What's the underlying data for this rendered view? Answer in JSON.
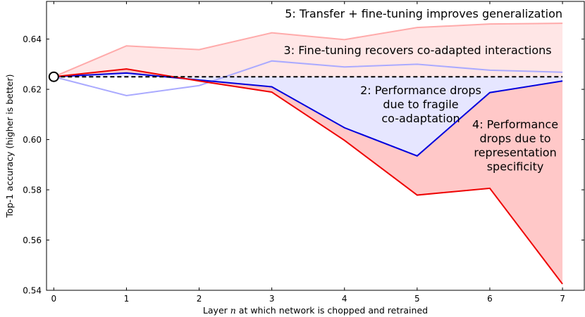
{
  "chart_data": {
    "type": "line",
    "title": "",
    "xlabel_prefix": "Layer ",
    "xlabel_var": "n",
    "xlabel_suffix": " at which network is chopped and retrained",
    "ylabel": "Top-1 accuracy (higher is better)",
    "x": [
      0,
      1,
      2,
      3,
      4,
      5,
      6,
      7
    ],
    "xlim": [
      -0.1,
      7.3
    ],
    "ylim": [
      0.54,
      0.655
    ],
    "xticks": [
      0,
      1,
      2,
      3,
      4,
      5,
      6,
      7
    ],
    "yticks": [
      0.54,
      0.56,
      0.58,
      0.6,
      0.62,
      0.64
    ],
    "ytick_labels": [
      "0.54",
      "0.56",
      "0.58",
      "0.60",
      "0.62",
      "0.64"
    ],
    "baseline": 0.625,
    "series": [
      {
        "key": "transfer_ft",
        "values": [
          0.625,
          0.6373,
          0.6358,
          0.6425,
          0.6398,
          0.6446,
          0.646,
          0.6463
        ],
        "color": "#ffaaaa"
      },
      {
        "key": "selffer_ft",
        "values": [
          0.625,
          0.6175,
          0.6215,
          0.6313,
          0.6289,
          0.63,
          0.6276,
          0.6268
        ],
        "color": "#aaaaff"
      },
      {
        "key": "selffer",
        "values": [
          0.625,
          0.6265,
          0.6237,
          0.621,
          0.6047,
          0.5935,
          0.6187,
          0.6233
        ],
        "color": "#0000dd"
      },
      {
        "key": "transfer",
        "values": [
          0.625,
          0.6281,
          0.6233,
          0.6189,
          0.5997,
          0.5779,
          0.5806,
          0.5425
        ],
        "color": "#ee0000"
      }
    ],
    "fills": [
      {
        "between": [
          "baseline",
          "transfer_ft"
        ],
        "color": "#ffe6e6"
      },
      {
        "between": [
          "selffer",
          "baseline"
        ],
        "color": "#e6e6ff"
      },
      {
        "between": [
          "transfer",
          "selffer"
        ],
        "color": "#ffc8c8"
      }
    ],
    "annotations": [
      {
        "key": "a5",
        "lines": [
          "5: Transfer + fine-tuning improves generalization"
        ],
        "x": 7.0,
        "y": 0.6485,
        "anchor": "end"
      },
      {
        "key": "a3",
        "lines": [
          "3: Fine-tuning recovers co-adapted interactions"
        ],
        "x": 6.85,
        "y": 0.634,
        "anchor": "end"
      },
      {
        "key": "a2",
        "lines": [
          "2: Performance drops",
          "due to fragile",
          "co-adaptation"
        ],
        "x": 5.05,
        "y": 0.618,
        "anchor": "middle"
      },
      {
        "key": "a4",
        "lines": [
          "4: Performance",
          "drops due to",
          "representation",
          "specificity"
        ],
        "x": 6.35,
        "y": 0.6045,
        "anchor": "middle"
      }
    ]
  }
}
